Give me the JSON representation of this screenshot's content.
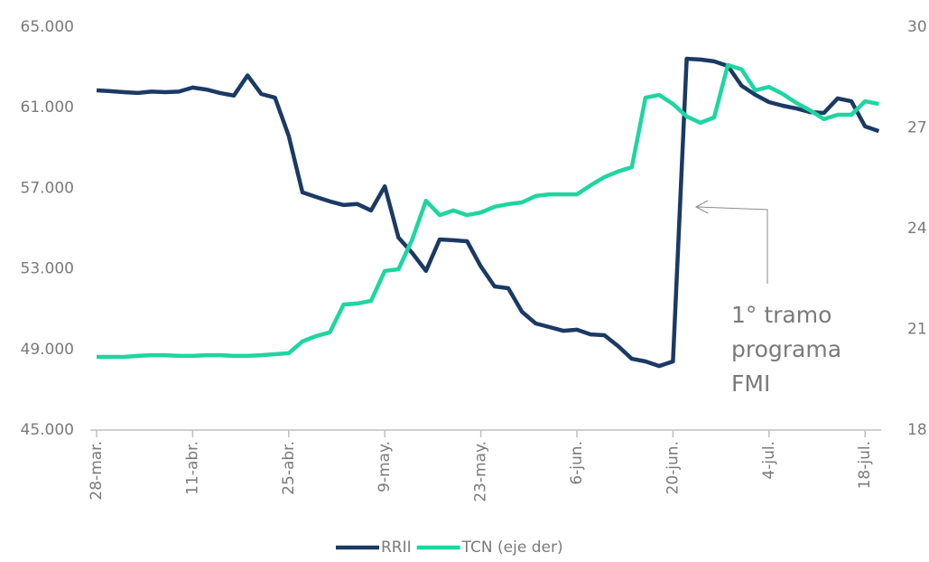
{
  "chart_data": {
    "type": "line",
    "x": [
      "28-mar.",
      "30-mar.",
      "1-abr.",
      "3-abr.",
      "5-abr.",
      "7-abr.",
      "9-abr.",
      "11-abr.",
      "13-abr.",
      "15-abr.",
      "17-abr.",
      "19-abr.",
      "21-abr.",
      "23-abr.",
      "25-abr.",
      "27-abr.",
      "29-abr.",
      "1-may.",
      "3-may.",
      "5-may.",
      "7-may.",
      "9-may.",
      "11-may.",
      "13-may.",
      "15-may.",
      "17-may.",
      "19-may.",
      "21-may.",
      "23-may.",
      "25-may.",
      "27-may.",
      "29-may.",
      "31-may.",
      "2-jun.",
      "4-jun.",
      "6-jun.",
      "8-jun.",
      "10-jun.",
      "12-jun.",
      "14-jun.",
      "16-jun.",
      "18-jun.",
      "20-jun.",
      "22-jun.",
      "24-jun.",
      "26-jun.",
      "28-jun.",
      "30-jun.",
      "2-jul.",
      "4-jul.",
      "6-jul.",
      "8-jul.",
      "10-jul.",
      "12-jul.",
      "14-jul.",
      "16-jul.",
      "18-jul.",
      "20-jul."
    ],
    "xticks": [
      "28-mar.",
      "11-abr.",
      "25-abr.",
      "9-may.",
      "23-may.",
      "6-jun.",
      "20-jun.",
      "4-jul.",
      "18-jul."
    ],
    "series": [
      {
        "name": "RRII",
        "color": "#1b3a63",
        "axis": "y",
        "values": [
          61860,
          61820,
          61770,
          61730,
          61800,
          61770,
          61800,
          62000,
          61900,
          61730,
          61600,
          62600,
          61680,
          61500,
          59600,
          56800,
          56570,
          56350,
          56170,
          56220,
          55900,
          57100,
          54550,
          53790,
          52900,
          54460,
          54420,
          54370,
          53120,
          52130,
          52040,
          50870,
          50290,
          50110,
          49930,
          49980,
          49750,
          49710,
          49170,
          48540,
          48410,
          48180,
          48410,
          63430,
          63390,
          63300,
          63070,
          62090,
          61640,
          61280,
          61100,
          60960,
          60780,
          60740,
          61460,
          61320,
          60070,
          59840
        ]
      },
      {
        "name": "TCN (eje der)",
        "color": "#1dd6a0",
        "axis": "y2",
        "values": [
          20.18,
          20.18,
          20.18,
          20.21,
          20.23,
          20.23,
          20.21,
          20.21,
          20.23,
          20.23,
          20.21,
          20.21,
          20.23,
          20.26,
          20.29,
          20.64,
          20.8,
          20.91,
          21.74,
          21.77,
          21.85,
          22.74,
          22.79,
          23.68,
          24.83,
          24.4,
          24.54,
          24.4,
          24.48,
          24.65,
          24.73,
          24.78,
          24.97,
          25.02,
          25.02,
          25.02,
          25.29,
          25.53,
          25.7,
          25.83,
          27.9,
          27.98,
          27.71,
          27.34,
          27.15,
          27.31,
          28.87,
          28.74,
          28.12,
          28.22,
          28.01,
          27.74,
          27.52,
          27.26,
          27.39,
          27.39,
          27.79,
          27.71
        ]
      }
    ],
    "ylim": [
      45000,
      65000
    ],
    "yticks": [
      {
        "value": 45000,
        "label": "45.000"
      },
      {
        "value": 49000,
        "label": "49.000"
      },
      {
        "value": 53000,
        "label": "53.000"
      },
      {
        "value": 57000,
        "label": "57.000"
      },
      {
        "value": 61000,
        "label": "61.000"
      },
      {
        "value": 65000,
        "label": "65.000"
      }
    ],
    "y2lim": [
      18,
      30
    ],
    "y2ticks": [
      18,
      21,
      24,
      27,
      30
    ],
    "annotation": [
      "1° tramo",
      "programa",
      "FMI"
    ],
    "legend": "bottom"
  }
}
